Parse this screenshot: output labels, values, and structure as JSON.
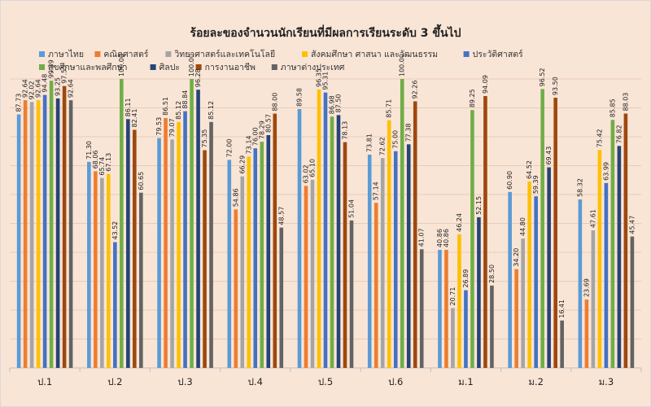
{
  "chart_data": {
    "type": "bar",
    "title": "ร้อยละของจำนวนนักเรียนที่มีผลการเรียนระดับ 3 ขึ้นไป",
    "xlabel": "",
    "ylabel": "",
    "ylim": [
      0,
      100
    ],
    "grid": true,
    "legend_position": "top",
    "background": "#f9e5d6",
    "categories": [
      "ป.1",
      "ป.2",
      "ป.3",
      "ป.4",
      "ป.5",
      "ป.6",
      "ม.1",
      "ม.2",
      "ม.3"
    ],
    "series": [
      {
        "name": "ภาษาไทย",
        "color": "#5b9bd5",
        "values": [
          87.73,
          71.3,
          79.53,
          72.0,
          89.58,
          73.81,
          40.86,
          60.9,
          58.32
        ]
      },
      {
        "name": "คณิตศาสตร์",
        "color": "#ed7d31",
        "values": [
          92.64,
          68.06,
          86.51,
          54.86,
          63.02,
          57.14,
          40.86,
          34.2,
          23.69
        ]
      },
      {
        "name": "วิทยาศาสตร์และเทคโนโลยี",
        "color": "#a5a5a5",
        "values": [
          92.02,
          65.74,
          79.07,
          66.29,
          65.1,
          72.62,
          20.71,
          44.8,
          47.61
        ]
      },
      {
        "name": "สังคมศึกษา ศาสนา และวัฒนธรรม",
        "color": "#ffc000",
        "values": [
          92.64,
          67.13,
          85.12,
          73.14,
          96.35,
          85.71,
          46.24,
          64.52,
          75.42
        ]
      },
      {
        "name": "ประวัติศาสตร์",
        "color": "#4472c4",
        "values": [
          94.48,
          43.52,
          88.84,
          76.0,
          95.31,
          75.0,
          26.89,
          59.39,
          63.99
        ]
      },
      {
        "name": "สุขศึกษาและพลศึกษา",
        "color": "#70ad47",
        "values": [
          99.39,
          100.0,
          100.0,
          78.29,
          86.98,
          100.0,
          89.25,
          96.52,
          85.85
        ]
      },
      {
        "name": "ศิลปะ",
        "color": "#264478",
        "values": [
          93.25,
          86.11,
          96.28,
          80.57,
          87.5,
          77.38,
          52.15,
          69.43,
          76.82
        ]
      },
      {
        "name": "การงานอาชีพ",
        "color": "#9e480e",
        "values": [
          97.55,
          82.41,
          75.35,
          88.0,
          78.13,
          92.26,
          94.09,
          93.5,
          88.03
        ]
      },
      {
        "name": "ภาษาต่างประเทศ",
        "color": "#636363",
        "values": [
          92.64,
          60.65,
          85.12,
          48.57,
          51.04,
          41.07,
          28.5,
          16.41,
          45.47
        ]
      }
    ]
  }
}
